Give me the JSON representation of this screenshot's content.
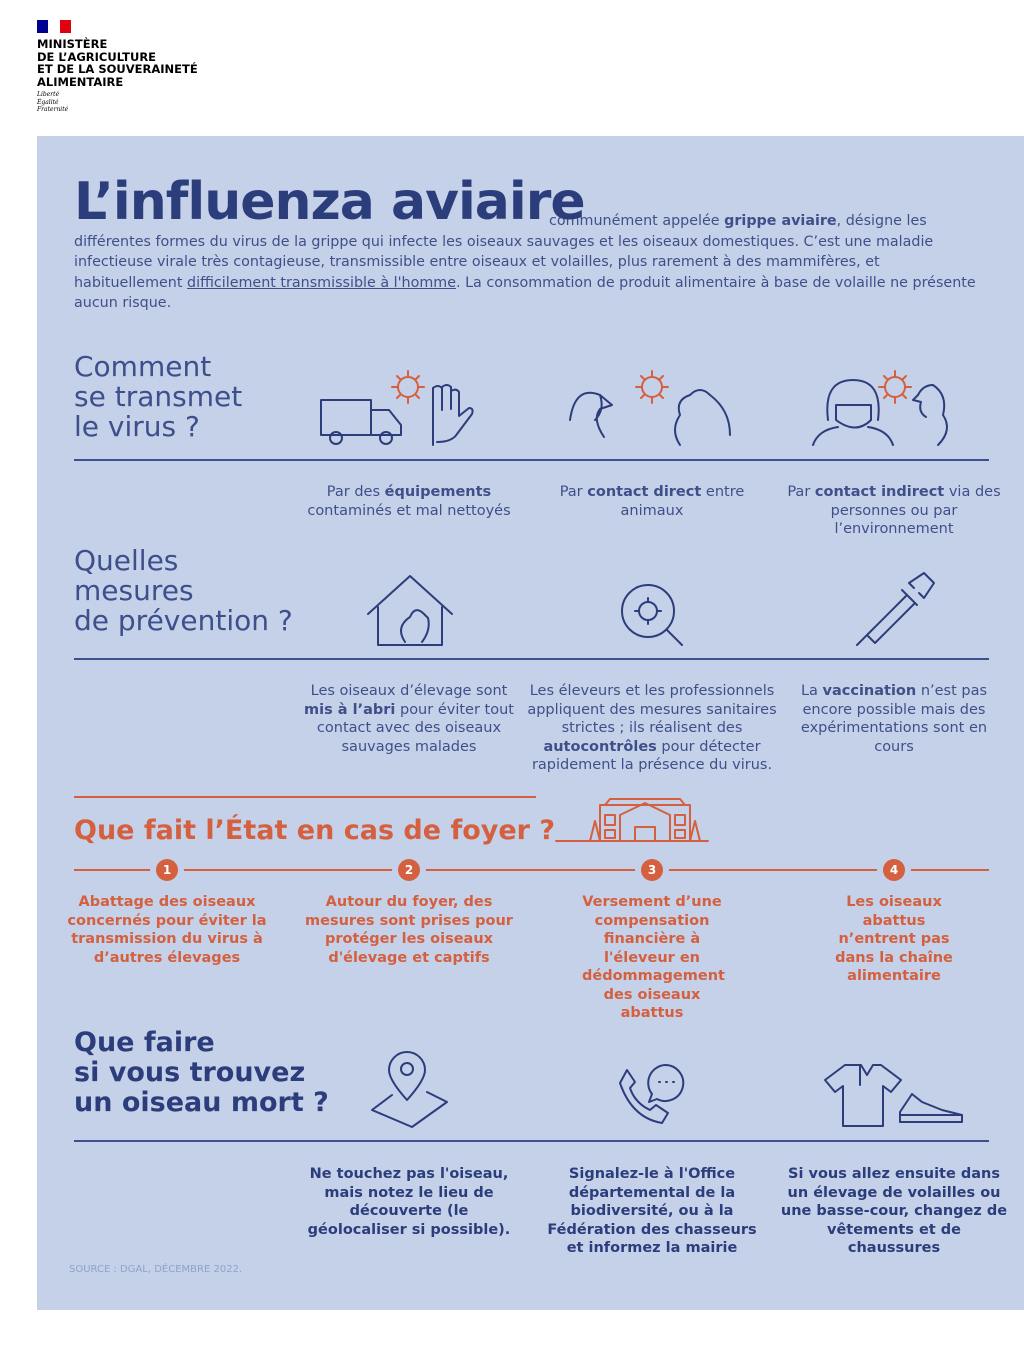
{
  "header": {
    "ministry_lines": [
      "MINISTÈRE",
      "DE L’AGRICULTURE",
      "ET DE LA SOUVERAINETÉ",
      "ALIMENTAIRE"
    ],
    "motto": [
      "Liberté",
      "Égalité",
      "Fraternité"
    ],
    "flag_colors": [
      "#000091",
      "#ffffff",
      "#e1000f"
    ]
  },
  "title": "L’influenza aviaire",
  "intro": {
    "p1": "communément appelée ",
    "b1": "grippe aviaire",
    "p2": ", désigne les différentes formes du virus de la grippe qui infecte les oiseaux sauvages et les oiseaux domestiques. C’est une maladie infectieuse virale très contagieuse, transmissible entre oiseaux et volailles, plus rarement à des mammifères, et habituellement ",
    "link": "difficilement transmissible à l'homme",
    "p3": ". La consommation de produit alimentaire à base de volaille ne présente aucun risque."
  },
  "transmission": {
    "heading": [
      "Comment",
      "se transmet",
      "le virus ?"
    ],
    "items": [
      {
        "pre": "Par des ",
        "bold": "équipements",
        "post": " contaminés et mal nettoyés",
        "icon": "truck-glove-icon"
      },
      {
        "pre": "Par ",
        "bold": "contact direct",
        "post": " entre animaux",
        "icon": "birds-icon"
      },
      {
        "pre": "Par ",
        "bold": "contact indirect",
        "post": " via des personnes ou par l’environnement",
        "icon": "person-bird-icon"
      }
    ]
  },
  "prevention": {
    "heading": [
      "Quelles",
      "mesures",
      "de prévention ?"
    ],
    "items": [
      {
        "pre": "Les oiseaux d’élevage sont ",
        "bold": "mis à l’abri",
        "post": " pour éviter tout contact avec des oiseaux sauvages malades",
        "icon": "henhouse-icon"
      },
      {
        "pre": "Les éleveurs et les professionnels appliquent des mesures sanitaires strictes ; ils réalisent des ",
        "bold": "autocontrôles",
        "post": " pour détecter rapidement la présence du virus.",
        "icon": "magnifier-virus-icon"
      },
      {
        "pre": "La ",
        "bold": "vaccination",
        "post": " n’est pas encore possible mais des expérimentations sont en cours",
        "icon": "syringe-icon"
      }
    ]
  },
  "state": {
    "heading": "Que fait l’État en cas de foyer ?",
    "accent": "#d4603f",
    "steps": [
      {
        "n": "1",
        "text": "Abattage des oiseaux concernés pour éviter la transmission du virus à d’autres élevages"
      },
      {
        "n": "2",
        "text": "Autour du foyer, des mesures sont prises pour protéger les oiseaux d'élevage et captifs"
      },
      {
        "n": "3",
        "text": "Versement d’une compensation financière à l'éleveur en dédommagement des oiseaux abattus"
      },
      {
        "n": "4",
        "text": "Les oiseaux abattus n’entrent pas dans la chaîne alimentaire"
      }
    ]
  },
  "dead_bird": {
    "heading": [
      "Que faire",
      "si vous trouvez",
      "un oiseau mort ?"
    ],
    "items": [
      {
        "text": "Ne touchez pas l'oiseau, mais notez le lieu de découverte (le géolocaliser si possible).",
        "icon": "map-pin-icon"
      },
      {
        "text": "Signalez-le à l'Office départemental de la biodiversité, ou à la Fédération des chasseurs et informez la mairie",
        "icon": "phone-icon"
      },
      {
        "text": "Si vous allez ensuite dans un élevage de volailles ou une basse-cour, changez de vêtements et de chaussures",
        "icon": "clothes-shoes-icon"
      }
    ]
  },
  "source": "SOURCE : DGAL, DÉCEMBRE 2022."
}
